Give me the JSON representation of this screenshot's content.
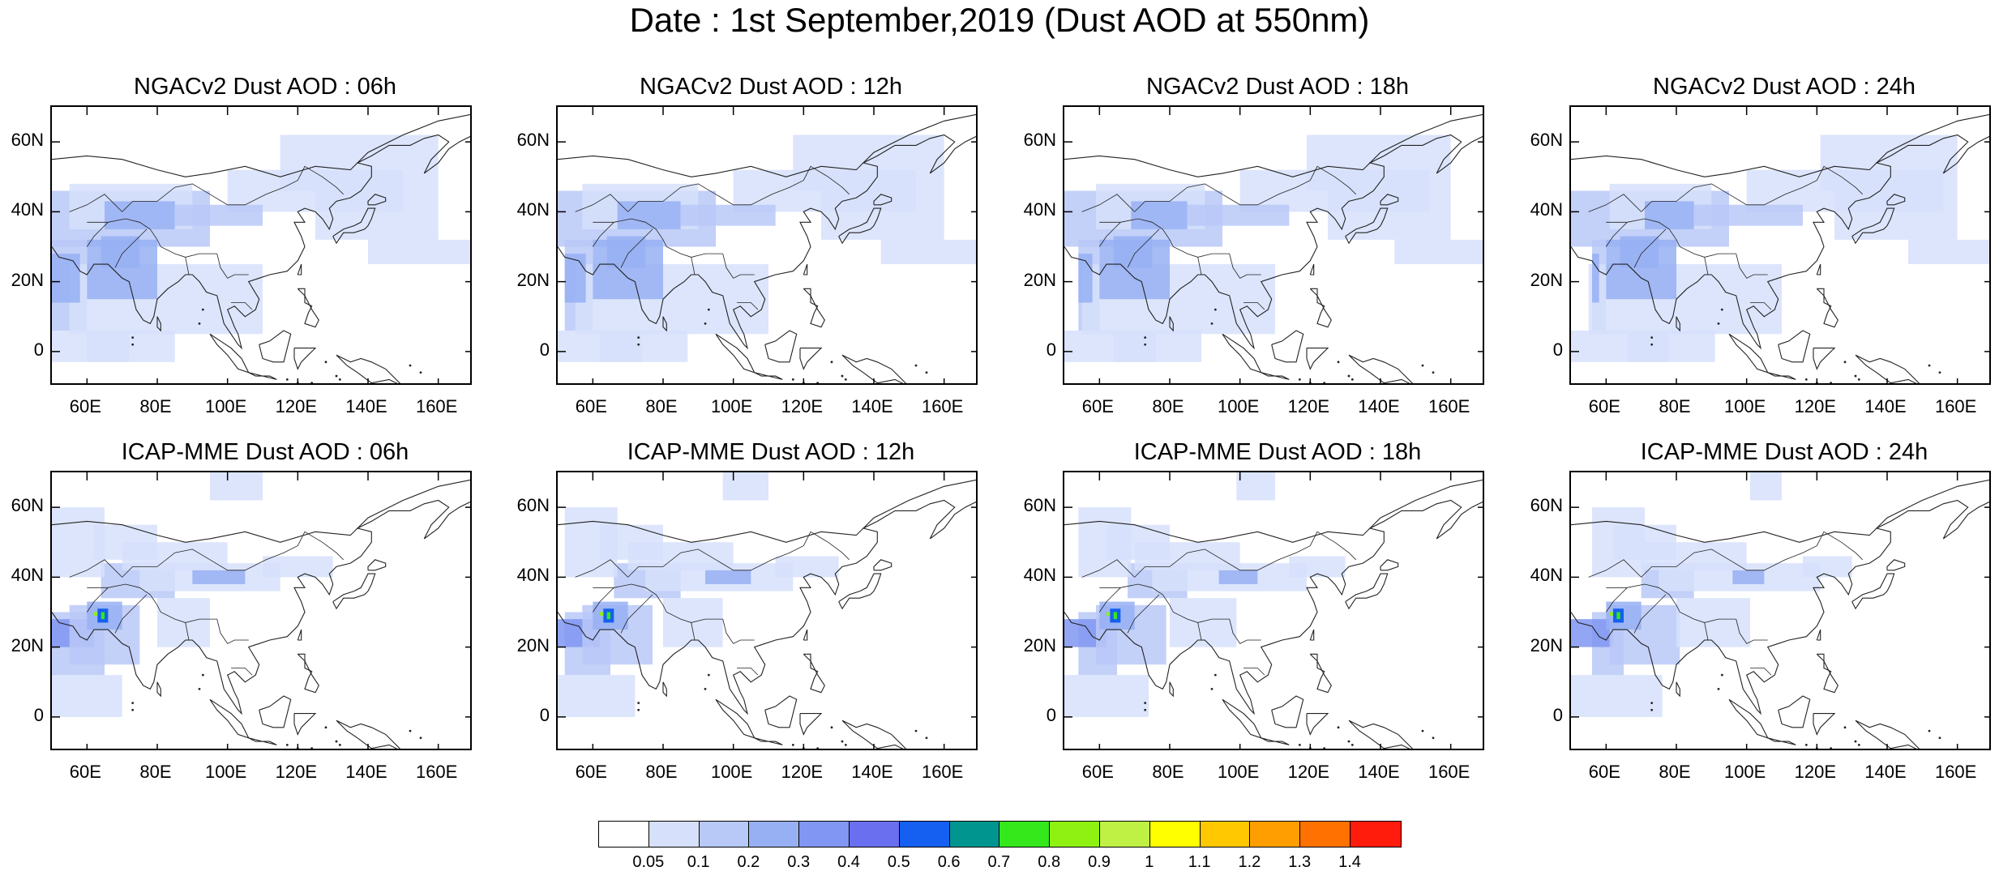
{
  "title": "Date : 1st September,2019 (Dust AOD at 550nm)",
  "panels": [
    {
      "title": "NGACv2 Dust AOD : 06h",
      "model": "NGACv2"
    },
    {
      "title": "NGACv2 Dust AOD : 12h",
      "model": "NGACv2"
    },
    {
      "title": "NGACv2 Dust AOD : 18h",
      "model": "NGACv2"
    },
    {
      "title": "NGACv2 Dust AOD : 24h",
      "model": "NGACv2"
    },
    {
      "title": "ICAP-MME Dust AOD : 06h",
      "model": "ICAP-MME"
    },
    {
      "title": "ICAP-MME Dust AOD : 12h",
      "model": "ICAP-MME"
    },
    {
      "title": "ICAP-MME Dust AOD : 18h",
      "model": "ICAP-MME"
    },
    {
      "title": "ICAP-MME Dust AOD : 24h",
      "model": "ICAP-MME"
    }
  ],
  "axes": {
    "lat_labels": [
      "60N",
      "40N",
      "20N",
      "0"
    ],
    "lon_labels": [
      "60E",
      "80E",
      "100E",
      "120E",
      "140E",
      "160E"
    ],
    "lat_range": [
      -10,
      70
    ],
    "lon_range": [
      50,
      170
    ]
  },
  "colorbar": {
    "colors": [
      "#ffffff",
      "#d6e0fb",
      "#b8c8f7",
      "#97b0f3",
      "#8096f2",
      "#6a6ff0",
      "#1560f0",
      "#00968f",
      "#34e81b",
      "#8ef111",
      "#bff144",
      "#ffff00",
      "#ffc800",
      "#ff9e00",
      "#ff7100",
      "#ff1c0d"
    ],
    "labels": [
      "0.05",
      "0.1",
      "0.2",
      "0.3",
      "0.4",
      "0.5",
      "0.6",
      "0.7",
      "0.8",
      "0.9",
      "1",
      "1.1",
      "1.2",
      "1.3",
      "1.4"
    ]
  }
}
